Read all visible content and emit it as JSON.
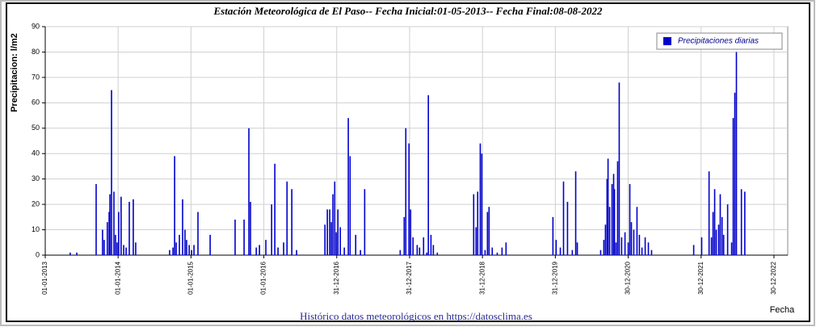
{
  "chart_data": {
    "type": "bar",
    "title": "Estación Meteorológica de El Paso-- Fecha Inicial:01-05-2013-- Fecha Final:08-08-2022",
    "y_label": "Precipitacion: l/m2",
    "x_label": "Fecha",
    "footer": "Histórico datos meteorológicos en https://datosclima.es",
    "legend": "upper right",
    "grid": true,
    "series": [
      {
        "name": "Precipitaciones diarias",
        "color": "#0000cc",
        "x": [
          "2013-05-06",
          "2013-06-08",
          "2013-09-13",
          "2013-10-15",
          "2013-10-23",
          "2013-11-08",
          "2013-11-17",
          "2013-11-21",
          "2013-11-29",
          "2013-12-11",
          "2013-12-19",
          "2013-12-27",
          "2014-01-04",
          "2014-01-16",
          "2014-01-29",
          "2014-02-10",
          "2014-02-26",
          "2014-03-18",
          "2014-03-30",
          "2014-09-16",
          "2014-10-03",
          "2014-10-11",
          "2014-10-19",
          "2014-11-04",
          "2014-11-20",
          "2014-12-02",
          "2014-12-10",
          "2014-12-23",
          "2015-01-04",
          "2015-01-16",
          "2015-02-05",
          "2015-04-07",
          "2015-08-10",
          "2015-09-24",
          "2015-10-18",
          "2015-10-26",
          "2015-11-24",
          "2015-12-10",
          "2016-01-11",
          "2016-02-09",
          "2016-02-25",
          "2016-03-12",
          "2016-04-09",
          "2016-04-26",
          "2016-05-20",
          "2016-06-13",
          "2016-11-02",
          "2016-11-14",
          "2016-11-26",
          "2016-12-04",
          "2016-12-12",
          "2016-12-21",
          "2016-12-29",
          "2017-01-06",
          "2017-01-18",
          "2017-02-07",
          "2017-02-27",
          "2017-03-08",
          "2017-04-05",
          "2017-04-29",
          "2017-05-20",
          "2017-11-14",
          "2017-12-04",
          "2017-12-12",
          "2017-12-28",
          "2018-01-05",
          "2018-01-17",
          "2018-02-07",
          "2018-02-19",
          "2018-03-11",
          "2018-03-27",
          "2018-04-04",
          "2018-04-17",
          "2018-04-29",
          "2018-05-19",
          "2018-11-17",
          "2018-11-29",
          "2018-12-07",
          "2018-12-20",
          "2018-12-28",
          "2019-01-13",
          "2019-01-25",
          "2019-02-02",
          "2019-02-18",
          "2019-03-15",
          "2019-04-08",
          "2019-04-28",
          "2019-12-19",
          "2020-01-04",
          "2020-01-25",
          "2020-02-10",
          "2020-03-01",
          "2020-03-25",
          "2020-04-11",
          "2020-04-19",
          "2020-08-14",
          "2020-08-30",
          "2020-09-07",
          "2020-09-15",
          "2020-09-20",
          "2020-09-28",
          "2020-10-10",
          "2020-10-18",
          "2020-10-22",
          "2020-10-30",
          "2020-11-07",
          "2020-11-15",
          "2020-11-27",
          "2020-12-14",
          "2020-12-30",
          "2021-01-07",
          "2021-01-15",
          "2021-01-27",
          "2021-02-12",
          "2021-02-24",
          "2021-03-09",
          "2021-03-25",
          "2021-04-10",
          "2021-04-26",
          "2021-11-23",
          "2022-01-02",
          "2022-02-08",
          "2022-02-20",
          "2022-02-28",
          "2022-03-08",
          "2022-03-16",
          "2022-03-28",
          "2022-04-05",
          "2022-04-14",
          "2022-04-22",
          "2022-05-12",
          "2022-06-01",
          "2022-06-09",
          "2022-06-17",
          "2022-06-25",
          "2022-07-20",
          "2022-08-06"
        ],
        "values": [
          1,
          1,
          28,
          10,
          6,
          13,
          17,
          24,
          65,
          25,
          8,
          5,
          17,
          23,
          4,
          3,
          21,
          22,
          5,
          2,
          3,
          39,
          5,
          8,
          22,
          10,
          6,
          4,
          2,
          4,
          17,
          8,
          14,
          14,
          50,
          21,
          3,
          4,
          6,
          20,
          36,
          3,
          5,
          29,
          26,
          2,
          12,
          18,
          18,
          13,
          24,
          29,
          9,
          18,
          11,
          3,
          54,
          39,
          8,
          2,
          26,
          2,
          15,
          50,
          44,
          18,
          7,
          4,
          3,
          7,
          1,
          63,
          8,
          4,
          1,
          24,
          11,
          25,
          44,
          40,
          2,
          17,
          19,
          3,
          1,
          3,
          5,
          15,
          6,
          3,
          29,
          21,
          2,
          33,
          5,
          2,
          6,
          12,
          30,
          38,
          19,
          28,
          32,
          26,
          5,
          37,
          68,
          7,
          9,
          5,
          28,
          13,
          10,
          19,
          8,
          3,
          7,
          5,
          2,
          4,
          7,
          33,
          7,
          17,
          26,
          10,
          12,
          24,
          15,
          8,
          20,
          5,
          54,
          64,
          80,
          26,
          25
        ]
      }
    ],
    "xlim": [
      "2013-01-01",
      "2023-03-09"
    ],
    "xticks": [
      {
        "value": "2013-01-01",
        "label": "01-01-2013"
      },
      {
        "value": "2014-01-01",
        "label": "01-01-2014"
      },
      {
        "value": "2015-01-01",
        "label": "01-01-2015"
      },
      {
        "value": "2016-01-01",
        "label": "01-01-2016"
      },
      {
        "value": "2016-12-31",
        "label": "31-12-2016"
      },
      {
        "value": "2017-12-31",
        "label": "31-12-2017"
      },
      {
        "value": "2018-12-31",
        "label": "31-12-2018"
      },
      {
        "value": "2019-12-31",
        "label": "31-12-2019"
      },
      {
        "value": "2020-12-30",
        "label": "30-12-2020"
      },
      {
        "value": "2021-12-30",
        "label": "30-12-2021"
      },
      {
        "value": "2022-12-30",
        "label": "30-12-2022"
      }
    ],
    "ylim": [
      0,
      90
    ],
    "yticks": [
      0,
      10,
      20,
      30,
      40,
      50,
      60,
      70,
      80,
      90
    ]
  }
}
